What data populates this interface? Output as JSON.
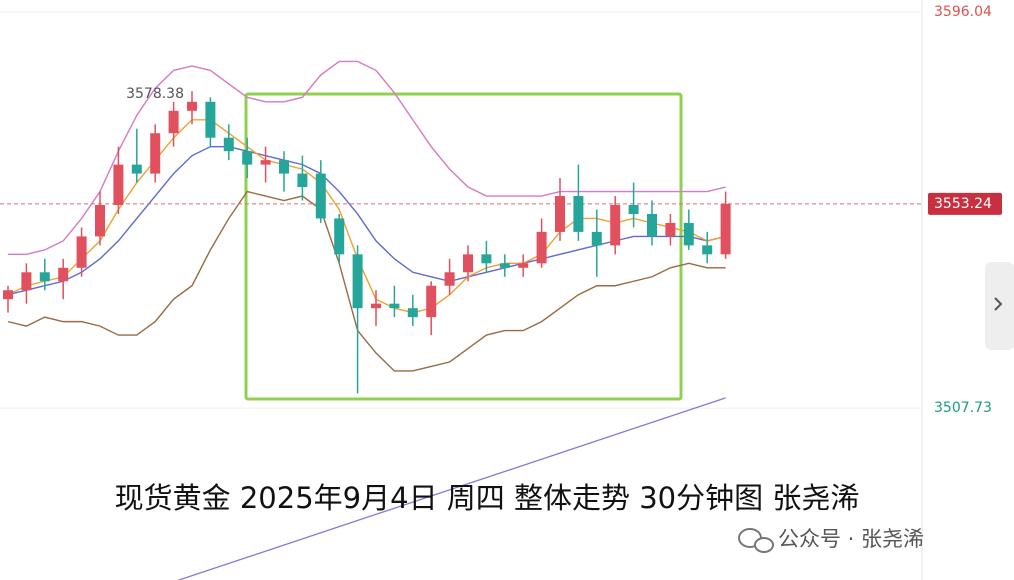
{
  "chart_data": {
    "type": "candlestick",
    "caption": "现货黄金 2025年9月4日 周四 整体走势 30分钟图 张尧浠",
    "watermark": "公众号 · 张尧浠",
    "ylim": [
      3469.4,
      3598.7
    ],
    "yticks": [
      3596.04,
      3507.73
    ],
    "last_price": 3553.24,
    "max_label": 3578.38,
    "max_index": 10,
    "up_color": "#e0505f",
    "down_color": "#26a69a",
    "open": [
      3532,
      3534,
      3538,
      3536,
      3539,
      3546,
      3553,
      3562,
      3560,
      3569,
      3574,
      3576,
      3568,
      3565,
      3562,
      3563,
      3560,
      3560,
      3550,
      3542,
      3530,
      3531,
      3530,
      3528,
      3535,
      3538,
      3542,
      3540,
      3539,
      3540,
      3547,
      3555,
      3547,
      3544,
      3553,
      3551,
      3546,
      3549,
      3544,
      3542
    ],
    "high": [
      3535,
      3540,
      3541,
      3541,
      3548,
      3556,
      3566,
      3570,
      3571,
      3576,
      3578.38,
      3577,
      3571,
      3568,
      3566,
      3565,
      3564,
      3563,
      3551,
      3544,
      3534,
      3535,
      3533,
      3536,
      3541,
      3544,
      3545,
      3542,
      3542,
      3550,
      3559,
      3562,
      3552,
      3555,
      3558,
      3554,
      3551,
      3552,
      3547,
      3556
    ],
    "low": [
      3529,
      3531,
      3534,
      3532,
      3537,
      3544,
      3551,
      3558,
      3558,
      3566,
      3571,
      3566,
      3563,
      3559,
      3558,
      3556,
      3554,
      3549,
      3540,
      3511,
      3526,
      3528,
      3526,
      3524,
      3533,
      3536,
      3538,
      3537,
      3537,
      3539,
      3545,
      3545,
      3537,
      3542,
      3548,
      3544,
      3544,
      3543,
      3540,
      3541
    ],
    "close": [
      3534,
      3538,
      3536,
      3539,
      3546,
      3553,
      3562,
      3560,
      3569,
      3574,
      3576,
      3568,
      3565,
      3562,
      3563,
      3560,
      3557,
      3550,
      3542,
      3530,
      3531,
      3530,
      3528,
      3535,
      3538,
      3542,
      3540,
      3539,
      3540,
      3547,
      3555,
      3547,
      3544,
      3553,
      3551,
      3546,
      3549,
      3544,
      3542,
      3553.24
    ],
    "overlays": [
      {
        "color": "#d67ac6",
        "values": [
          3542,
          3542,
          3543,
          3545,
          3550,
          3556,
          3565,
          3573,
          3579,
          3583,
          3584,
          3583,
          3580,
          3577,
          3576,
          3576,
          3577,
          3582,
          3585,
          3585,
          3583,
          3578,
          3572,
          3566,
          3561,
          3557,
          3555,
          3555,
          3555,
          3555,
          3556,
          3556,
          3556,
          3556,
          3556,
          3556,
          3556,
          3556,
          3556,
          3557
        ]
      },
      {
        "color": "#9a6a40",
        "values": [
          3527,
          3526,
          3528,
          3527,
          3527,
          3526,
          3524,
          3524,
          3527,
          3532,
          3535,
          3543,
          3550,
          3556,
          3555,
          3554,
          3555,
          3552,
          3540,
          3525,
          3520,
          3516,
          3516,
          3517,
          3518,
          3521,
          3524,
          3525,
          3525,
          3527,
          3530,
          3533,
          3535,
          3535,
          3536,
          3537,
          3539,
          3540,
          3539,
          3539
        ]
      },
      {
        "color": "#5c6bd0",
        "values": [
          3533,
          3534,
          3535,
          3536,
          3538,
          3541,
          3545,
          3550,
          3555,
          3560,
          3564,
          3566,
          3566,
          3565,
          3564,
          3563,
          3562,
          3560,
          3556,
          3551,
          3545,
          3541,
          3538,
          3537,
          3536,
          3537,
          3538,
          3539,
          3540,
          3541,
          3542,
          3543,
          3544,
          3545,
          3546,
          3546,
          3546,
          3546,
          3545,
          3546
        ]
      },
      {
        "color": "#f0a030",
        "values": [
          3533,
          3535,
          3536,
          3537,
          3541,
          3545,
          3552,
          3558,
          3563,
          3568,
          3572,
          3572,
          3569,
          3566,
          3563,
          3562,
          3561,
          3558,
          3552,
          3541,
          3532,
          3530,
          3529,
          3530,
          3533,
          3537,
          3539,
          3540,
          3540,
          3542,
          3547,
          3550,
          3550,
          3549,
          3550,
          3549,
          3548,
          3547,
          3545,
          3546
        ]
      }
    ],
    "trendline": {
      "color": "#8878d8",
      "x": [
        9,
        39
      ],
      "values": [
        3469,
        3510
      ]
    }
  }
}
